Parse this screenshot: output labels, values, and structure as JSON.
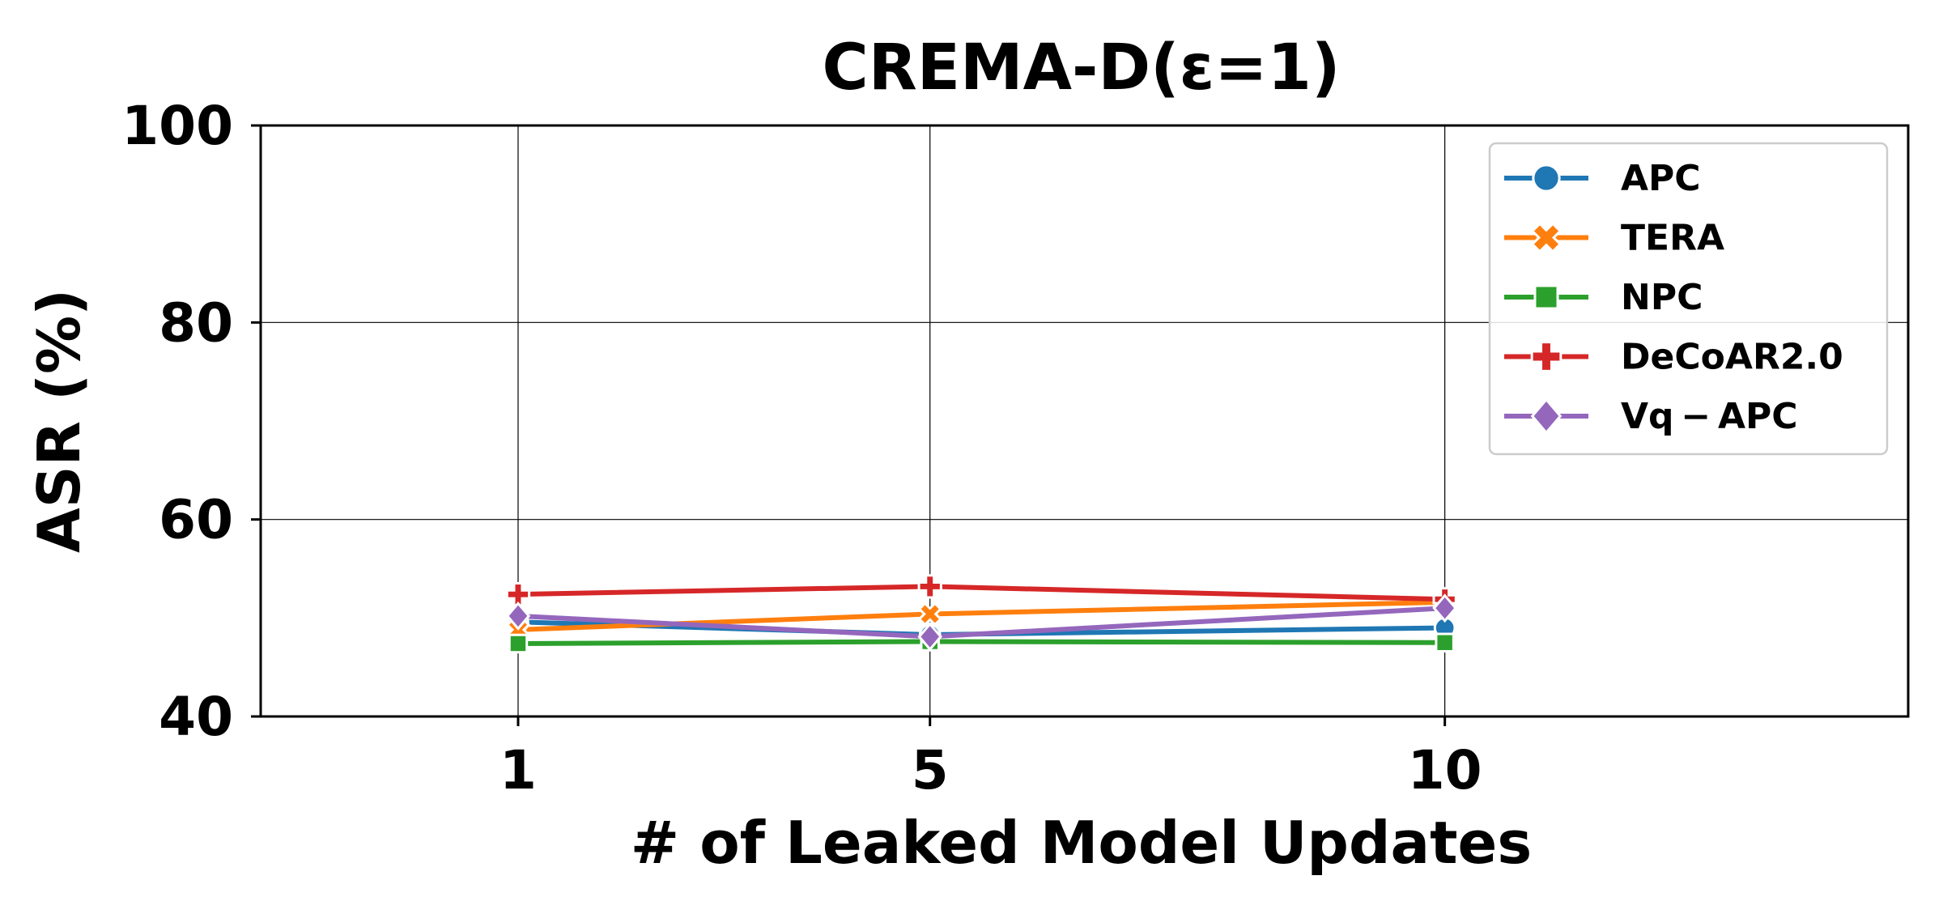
{
  "chart_data": {
    "type": "line",
    "title": "CREMA-D(ε=1)",
    "xlabel": "# of Leaked Model Updates",
    "ylabel": "ASR (%)",
    "categories": [
      "1",
      "5",
      "10"
    ],
    "x": [
      1,
      5,
      10
    ],
    "xticks": [
      "1",
      "5",
      "10"
    ],
    "yticks": [
      "40",
      "60",
      "80",
      "100"
    ],
    "ylim": [
      40,
      100
    ],
    "grid": true,
    "legend_position": "top-right",
    "series": [
      {
        "name": "APC",
        "values": [
          49.6,
          48.3,
          49.0
        ],
        "color": "#1f77b4",
        "marker": "circle"
      },
      {
        "name": "TERA",
        "values": [
          48.8,
          50.4,
          51.6
        ],
        "color": "#ff7f0e",
        "marker": "x-filled"
      },
      {
        "name": "NPC",
        "values": [
          47.4,
          47.6,
          47.5
        ],
        "color": "#2ca02c",
        "marker": "square"
      },
      {
        "name": "DeCoAR2.0",
        "values": [
          52.4,
          53.2,
          51.9
        ],
        "color": "#d62728",
        "marker": "plus-filled"
      },
      {
        "name": "Vq − APC",
        "values": [
          50.2,
          48.1,
          51.0
        ],
        "color": "#9467bd",
        "marker": "diamond"
      }
    ]
  }
}
